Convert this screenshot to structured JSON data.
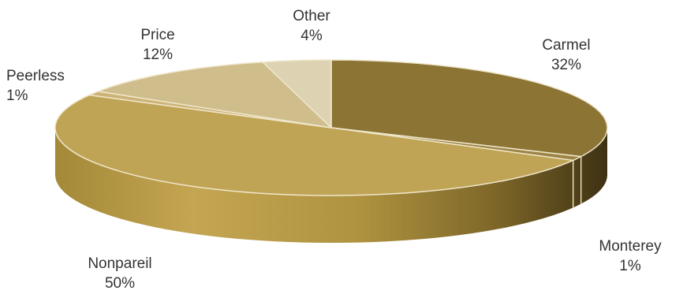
{
  "chart_data": {
    "type": "pie",
    "style": "3d",
    "title": "",
    "slices": [
      {
        "label": "Carmel",
        "percent_label": "32%",
        "value": 32,
        "color": "#8c7434"
      },
      {
        "label": "Monterey",
        "percent_label": "1%",
        "value": 1,
        "color": "#9b8444"
      },
      {
        "label": "Nonpareil",
        "percent_label": "50%",
        "value": 50,
        "color": "#c0a455"
      },
      {
        "label": "Peerless",
        "percent_label": "1%",
        "value": 1,
        "color": "#ccb274"
      },
      {
        "label": "Price",
        "percent_label": "12%",
        "value": 12,
        "color": "#cfbd8b"
      },
      {
        "label": "Other",
        "percent_label": "4%",
        "value": 4,
        "color": "#ddd3b3"
      }
    ]
  }
}
